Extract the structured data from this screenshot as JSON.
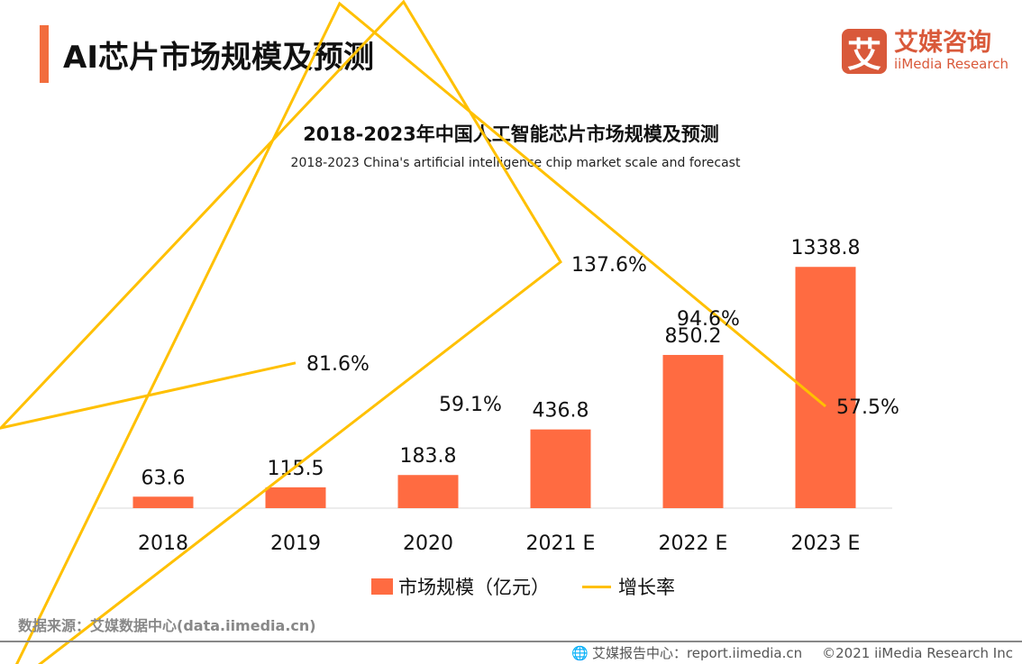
{
  "header": {
    "title": "AI芯片市场规模及预测",
    "logo_mark": "艾",
    "logo_cn": "艾媒咨询",
    "logo_en": "iiMedia Research"
  },
  "chart_data": {
    "type": "bar",
    "title": "2018-2023年中国人工智能芯片市场规模及预测",
    "subtitle": "2018-2023 China's artificial intelligence chip market scale and forecast",
    "categories": [
      "2018",
      "2019",
      "2020",
      "2021 E",
      "2022 E",
      "2023 E"
    ],
    "series": [
      {
        "name": "市场规模（亿元）",
        "type": "bar",
        "color": "#ff6b41",
        "values": [
          63.6,
          115.5,
          183.8,
          436.8,
          850.2,
          1338.8
        ],
        "labels": [
          "63.6",
          "115.5",
          "183.8",
          "436.8",
          "850.2",
          "1338.8"
        ]
      },
      {
        "name": "增长率",
        "type": "line",
        "color": "#ffc000",
        "values": [
          null,
          81.6,
          59.1,
          137.6,
          94.6,
          57.5
        ],
        "labels": [
          "",
          "81.6%",
          "59.1%",
          "137.6%",
          "94.6%",
          "57.5%"
        ]
      }
    ],
    "ylim_bar": [
      0,
      1400
    ],
    "ylim_line": [
      0,
      140
    ],
    "grid": false,
    "legend": "bottom"
  },
  "footer": {
    "source": "数据来源：艾媒数据中心(data.iimedia.cn)",
    "report": "艾媒报告中心：report.iimedia.cn",
    "copyright": "©2021  iiMedia Research  Inc"
  }
}
